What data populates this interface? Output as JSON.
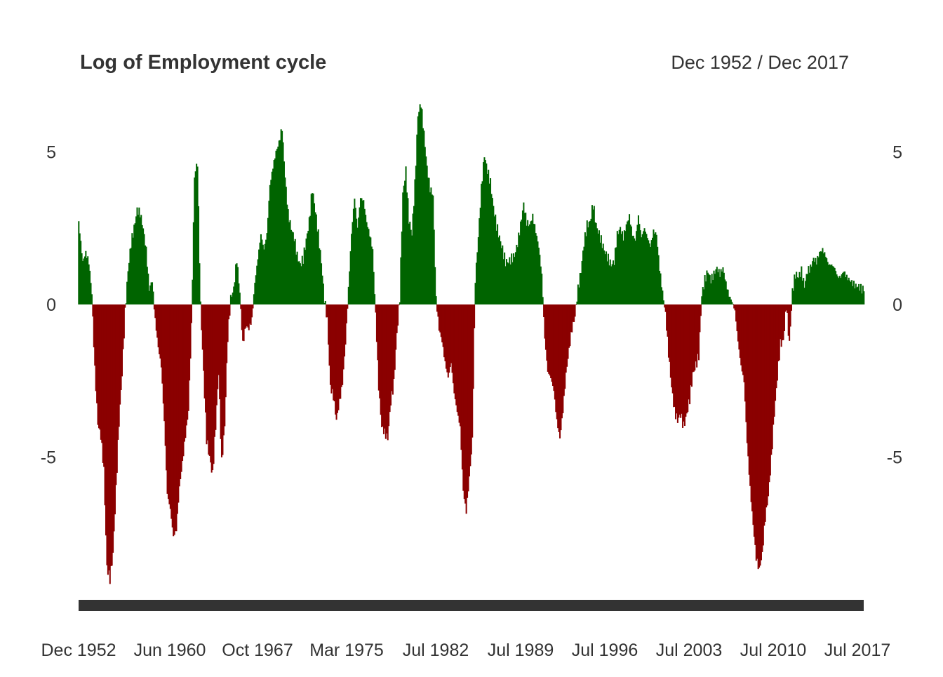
{
  "chart_data": {
    "type": "bar",
    "title": "Log of Employment cycle",
    "subtitle": "Dec 1952 / Dec 2017",
    "xlabel": "",
    "ylabel": "",
    "ylim": [
      -9.5,
      6.6
    ],
    "yticks": [
      "5",
      "0",
      "-5"
    ],
    "ytick_values": [
      5,
      0,
      -5
    ],
    "xtick_labels": [
      "Dec 1952",
      "Jun 1960",
      "Oct 1967",
      "Mar 1975",
      "Jul 1982",
      "Jul 1989",
      "Jul 1996",
      "Jul 2003",
      "Jul 2010",
      "Jul 2017"
    ],
    "xtick_values": [
      1952.92,
      1960.42,
      1967.75,
      1975.17,
      1982.5,
      1989.5,
      1996.5,
      2003.5,
      2010.5,
      2017.5
    ],
    "xlim": [
      1952.92,
      2017.92
    ],
    "positive_color": "#006400",
    "negative_color": "#8B0000",
    "grid": false,
    "legend": "none",
    "series": [
      {
        "points": [
          [
            1952.92,
            2.7
          ],
          [
            1953.25,
            1.4
          ],
          [
            1953.5,
            1.7
          ],
          [
            1953.75,
            1.4
          ],
          [
            1954.0,
            0.4
          ],
          [
            1954.25,
            -2.1
          ],
          [
            1954.5,
            -3.9
          ],
          [
            1954.75,
            -4.3
          ],
          [
            1955.0,
            -5.4
          ],
          [
            1955.25,
            -8.6
          ],
          [
            1955.5,
            -9.0
          ],
          [
            1955.75,
            -8.2
          ],
          [
            1956.0,
            -6.1
          ],
          [
            1956.25,
            -3.9
          ],
          [
            1956.5,
            -2.3
          ],
          [
            1956.75,
            -0.3
          ],
          [
            1957.0,
            1.1
          ],
          [
            1957.25,
            2.0
          ],
          [
            1957.5,
            2.5
          ],
          [
            1957.75,
            3.1
          ],
          [
            1958.0,
            3.0
          ],
          [
            1958.25,
            2.5
          ],
          [
            1958.5,
            1.8
          ],
          [
            1958.75,
            0.5
          ],
          [
            1959.0,
            0.8
          ],
          [
            1959.25,
            -0.5
          ],
          [
            1959.5,
            -1.4
          ],
          [
            1959.75,
            -2.0
          ],
          [
            1960.0,
            -3.8
          ],
          [
            1960.25,
            -6.2
          ],
          [
            1960.5,
            -6.7
          ],
          [
            1960.75,
            -7.6
          ],
          [
            1961.0,
            -7.4
          ],
          [
            1961.25,
            -6.0
          ],
          [
            1961.5,
            -5.2
          ],
          [
            1961.75,
            -4.3
          ],
          [
            1962.0,
            -3.5
          ],
          [
            1962.25,
            -0.8
          ],
          [
            1962.5,
            4.2
          ],
          [
            1962.75,
            4.7
          ],
          [
            1963.0,
            0.0
          ],
          [
            1963.25,
            -2.2
          ],
          [
            1963.5,
            -4.4
          ],
          [
            1963.75,
            -5.0
          ],
          [
            1964.0,
            -5.6
          ],
          [
            1964.25,
            -4.0
          ],
          [
            1964.5,
            -2.2
          ],
          [
            1964.75,
            -5.2
          ],
          [
            1965.0,
            -4.0
          ],
          [
            1965.25,
            -1.1
          ],
          [
            1965.5,
            0.2
          ],
          [
            1965.75,
            0.5
          ],
          [
            1966.0,
            1.5
          ],
          [
            1966.25,
            0.4
          ],
          [
            1966.5,
            -1.3
          ],
          [
            1966.75,
            -0.7
          ],
          [
            1967.0,
            -0.8
          ],
          [
            1967.25,
            -0.5
          ],
          [
            1967.5,
            0.7
          ],
          [
            1967.75,
            1.5
          ],
          [
            1968.0,
            2.3
          ],
          [
            1968.25,
            1.8
          ],
          [
            1968.5,
            2.3
          ],
          [
            1968.75,
            3.9
          ],
          [
            1969.0,
            4.5
          ],
          [
            1969.25,
            5.0
          ],
          [
            1969.5,
            5.3
          ],
          [
            1969.75,
            5.8
          ],
          [
            1970.0,
            4.2
          ],
          [
            1970.25,
            3.0
          ],
          [
            1970.5,
            2.5
          ],
          [
            1970.75,
            2.2
          ],
          [
            1971.0,
            1.6
          ],
          [
            1971.25,
            1.3
          ],
          [
            1971.5,
            1.5
          ],
          [
            1971.75,
            2.1
          ],
          [
            1972.0,
            2.7
          ],
          [
            1972.25,
            3.8
          ],
          [
            1972.5,
            3.1
          ],
          [
            1972.75,
            2.3
          ],
          [
            1973.0,
            1.4
          ],
          [
            1973.25,
            0.2
          ],
          [
            1973.5,
            -0.5
          ],
          [
            1973.75,
            -2.7
          ],
          [
            1974.0,
            -3.0
          ],
          [
            1974.25,
            -3.8
          ],
          [
            1974.5,
            -3.2
          ],
          [
            1974.75,
            -2.6
          ],
          [
            1975.0,
            -1.3
          ],
          [
            1975.25,
            0.5
          ],
          [
            1975.5,
            2.3
          ],
          [
            1975.75,
            3.5
          ],
          [
            1976.0,
            2.5
          ],
          [
            1976.25,
            3.5
          ],
          [
            1976.5,
            3.4
          ],
          [
            1976.75,
            2.7
          ],
          [
            1977.0,
            2.3
          ],
          [
            1977.25,
            1.8
          ],
          [
            1977.5,
            -0.3
          ],
          [
            1977.75,
            -2.7
          ],
          [
            1978.0,
            -4.0
          ],
          [
            1978.25,
            -4.2
          ],
          [
            1978.5,
            -4.4
          ],
          [
            1978.75,
            -3.2
          ],
          [
            1979.0,
            -2.6
          ],
          [
            1979.25,
            -1.0
          ],
          [
            1979.5,
            0.2
          ],
          [
            1979.75,
            3.6
          ],
          [
            1980.0,
            4.4
          ],
          [
            1980.25,
            2.8
          ],
          [
            1980.5,
            2.3
          ],
          [
            1980.75,
            3.9
          ],
          [
            1981.0,
            6.2
          ],
          [
            1981.25,
            6.6
          ],
          [
            1981.5,
            5.6
          ],
          [
            1981.75,
            4.5
          ],
          [
            1982.0,
            3.8
          ],
          [
            1982.25,
            3.6
          ],
          [
            1982.5,
            0.2
          ],
          [
            1982.75,
            -0.8
          ],
          [
            1983.0,
            -1.2
          ],
          [
            1983.25,
            -1.9
          ],
          [
            1983.5,
            -2.4
          ],
          [
            1983.75,
            -1.9
          ],
          [
            1984.0,
            -2.9
          ],
          [
            1984.25,
            -3.5
          ],
          [
            1984.5,
            -4.0
          ],
          [
            1984.75,
            -6.1
          ],
          [
            1985.0,
            -6.8
          ],
          [
            1985.25,
            -5.7
          ],
          [
            1985.5,
            -4.5
          ],
          [
            1985.75,
            0.8
          ],
          [
            1986.0,
            2.2
          ],
          [
            1986.25,
            3.8
          ],
          [
            1986.5,
            4.9
          ],
          [
            1986.75,
            4.4
          ],
          [
            1987.0,
            4.0
          ],
          [
            1987.25,
            3.2
          ],
          [
            1987.5,
            2.6
          ],
          [
            1987.75,
            2.2
          ],
          [
            1988.0,
            1.8
          ],
          [
            1988.25,
            1.4
          ],
          [
            1988.5,
            1.4
          ],
          [
            1988.75,
            1.5
          ],
          [
            1989.0,
            1.6
          ],
          [
            1989.25,
            2.0
          ],
          [
            1989.5,
            2.6
          ],
          [
            1989.75,
            3.3
          ],
          [
            1990.0,
            2.7
          ],
          [
            1990.25,
            2.6
          ],
          [
            1990.5,
            2.9
          ],
          [
            1990.75,
            2.4
          ],
          [
            1991.0,
            1.9
          ],
          [
            1991.25,
            1.0
          ],
          [
            1991.5,
            -1.1
          ],
          [
            1991.75,
            -2.2
          ],
          [
            1992.0,
            -2.4
          ],
          [
            1992.25,
            -2.8
          ],
          [
            1992.5,
            -3.8
          ],
          [
            1992.75,
            -4.4
          ],
          [
            1993.0,
            -3.5
          ],
          [
            1993.25,
            -2.3
          ],
          [
            1993.5,
            -1.5
          ],
          [
            1993.75,
            -0.8
          ],
          [
            1994.0,
            -0.4
          ],
          [
            1994.25,
            0.5
          ],
          [
            1994.5,
            1.1
          ],
          [
            1994.75,
            2.0
          ],
          [
            1995.0,
            2.6
          ],
          [
            1995.25,
            2.7
          ],
          [
            1995.5,
            3.3
          ],
          [
            1995.75,
            2.6
          ],
          [
            1996.0,
            2.3
          ],
          [
            1996.25,
            2.0
          ],
          [
            1996.5,
            1.7
          ],
          [
            1996.75,
            1.5
          ],
          [
            1997.0,
            1.3
          ],
          [
            1997.25,
            1.4
          ],
          [
            1997.5,
            2.3
          ],
          [
            1997.75,
            2.5
          ],
          [
            1998.0,
            2.2
          ],
          [
            1998.25,
            2.6
          ],
          [
            1998.5,
            2.9
          ],
          [
            1998.75,
            2.3
          ],
          [
            1999.0,
            2.1
          ],
          [
            1999.25,
            2.9
          ],
          [
            1999.5,
            2.2
          ],
          [
            1999.75,
            2.5
          ],
          [
            2000.0,
            2.2
          ],
          [
            2000.25,
            1.9
          ],
          [
            2000.5,
            2.4
          ],
          [
            2000.75,
            2.3
          ],
          [
            2001.0,
            1.2
          ],
          [
            2001.25,
            0.4
          ],
          [
            2001.5,
            -0.3
          ],
          [
            2001.75,
            -1.6
          ],
          [
            2002.0,
            -2.7
          ],
          [
            2002.25,
            -3.5
          ],
          [
            2002.5,
            -3.8
          ],
          [
            2002.75,
            -3.6
          ],
          [
            2003.0,
            -4.0
          ],
          [
            2003.25,
            -3.6
          ],
          [
            2003.5,
            -3.1
          ],
          [
            2003.75,
            -2.3
          ],
          [
            2004.0,
            -2.0
          ],
          [
            2004.25,
            -1.7
          ],
          [
            2004.5,
            0.3
          ],
          [
            2004.75,
            0.8
          ],
          [
            2005.0,
            1.1
          ],
          [
            2005.25,
            0.8
          ],
          [
            2005.5,
            1.0
          ],
          [
            2005.75,
            1.2
          ],
          [
            2006.0,
            1.0
          ],
          [
            2006.25,
            1.2
          ],
          [
            2006.5,
            0.7
          ],
          [
            2006.75,
            0.3
          ],
          [
            2007.0,
            0.1
          ],
          [
            2007.25,
            -0.2
          ],
          [
            2007.5,
            -1.2
          ],
          [
            2007.75,
            -2.0
          ],
          [
            2008.0,
            -2.5
          ],
          [
            2008.25,
            -4.5
          ],
          [
            2008.5,
            -6.0
          ],
          [
            2008.75,
            -7.2
          ],
          [
            2009.0,
            -8.3
          ],
          [
            2009.25,
            -8.7
          ],
          [
            2009.5,
            -8.2
          ],
          [
            2009.75,
            -7.0
          ],
          [
            2010.0,
            -6.3
          ],
          [
            2010.25,
            -5.1
          ],
          [
            2010.5,
            -3.6
          ],
          [
            2010.75,
            -2.4
          ],
          [
            2011.0,
            -1.3
          ],
          [
            2011.25,
            -1.2
          ],
          [
            2011.5,
            0.0
          ],
          [
            2011.75,
            -1.3
          ],
          [
            2012.0,
            0.4
          ],
          [
            2012.25,
            1.0
          ],
          [
            2012.5,
            0.9
          ],
          [
            2012.75,
            1.1
          ],
          [
            2013.0,
            0.6
          ],
          [
            2013.25,
            1.1
          ],
          [
            2013.5,
            1.2
          ],
          [
            2013.75,
            1.5
          ],
          [
            2014.0,
            1.4
          ],
          [
            2014.25,
            1.7
          ],
          [
            2014.5,
            1.8
          ],
          [
            2014.75,
            1.6
          ],
          [
            2015.0,
            1.3
          ],
          [
            2015.25,
            1.3
          ],
          [
            2015.5,
            1.2
          ],
          [
            2015.75,
            0.9
          ],
          [
            2016.0,
            0.9
          ],
          [
            2016.25,
            1.1
          ],
          [
            2016.5,
            0.9
          ],
          [
            2016.75,
            0.8
          ],
          [
            2017.0,
            0.7
          ],
          [
            2017.25,
            0.6
          ],
          [
            2017.5,
            0.6
          ],
          [
            2017.75,
            0.5
          ],
          [
            2017.92,
            0.5
          ]
        ]
      }
    ]
  }
}
